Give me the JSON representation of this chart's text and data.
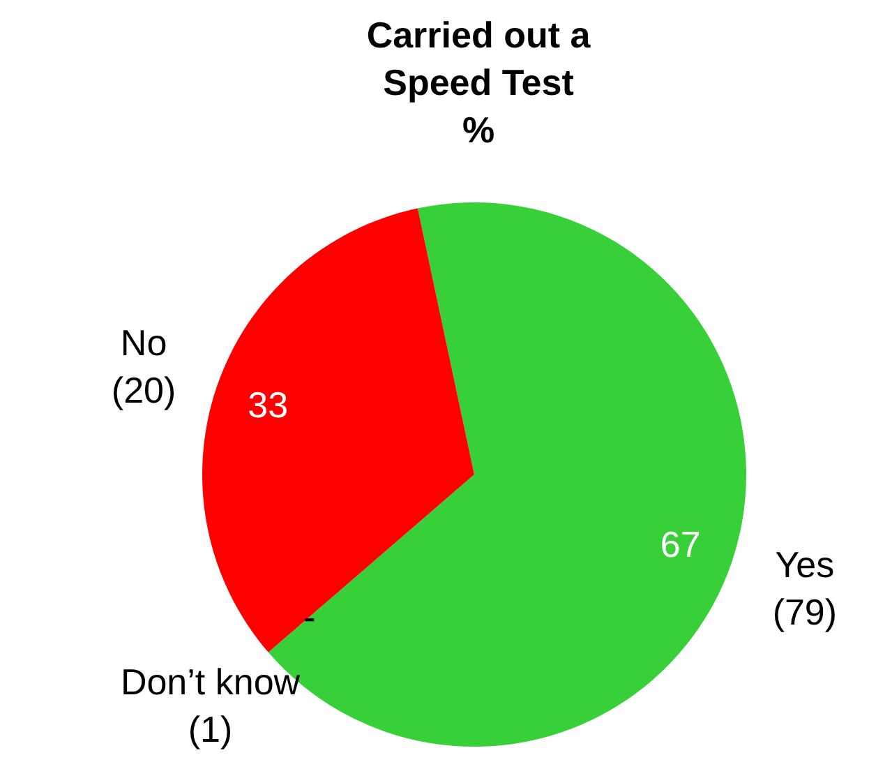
{
  "chart_data": {
    "type": "pie",
    "title": "Carried out a Speed Test",
    "subtitle": "%",
    "categories": [
      "Yes (79)",
      "Don’t know (1)",
      "No (20)"
    ],
    "values": [
      67,
      0,
      33
    ],
    "colors": [
      "#38d038",
      "#a0a0a0",
      "#ff0000"
    ],
    "value_labels": [
      "67",
      "-",
      "33"
    ],
    "legend": false
  }
}
